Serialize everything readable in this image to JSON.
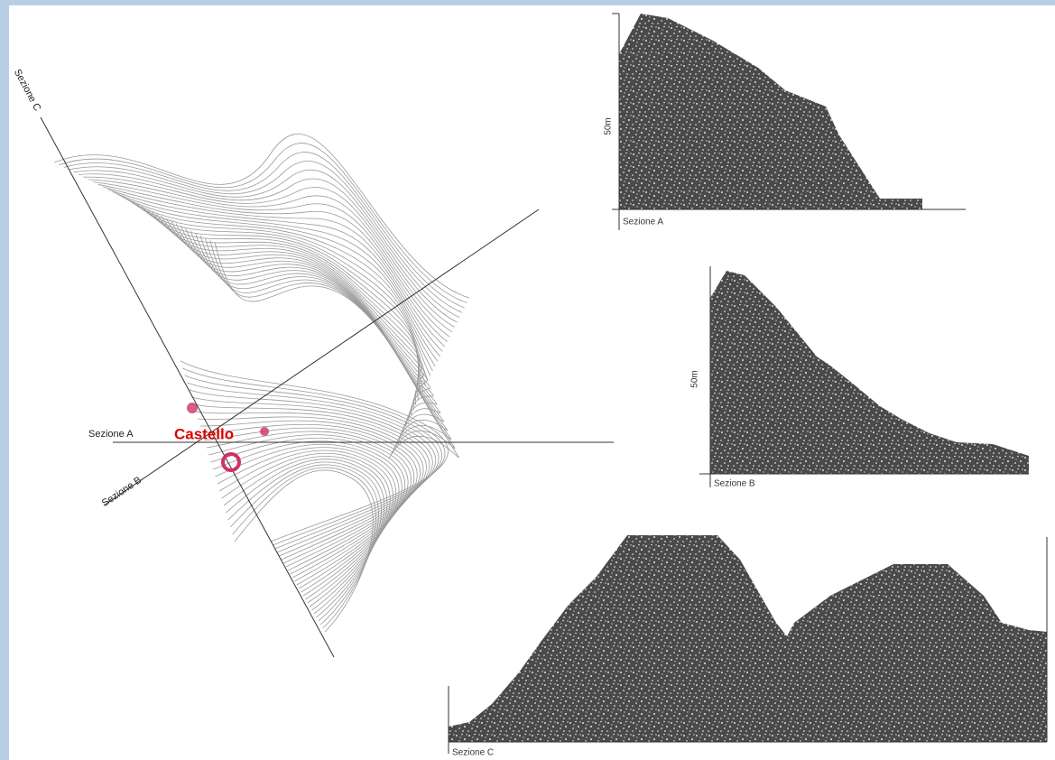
{
  "map": {
    "section_labels": [
      "Sezione C",
      "Sezione A",
      "Sezione B"
    ],
    "landmark": "Castello"
  },
  "profiles": [
    {
      "scale": "50m",
      "caption": "Sezione A"
    },
    {
      "scale": "50m",
      "caption": "Sezione B"
    },
    {
      "caption": "Sezione C"
    }
  ]
}
